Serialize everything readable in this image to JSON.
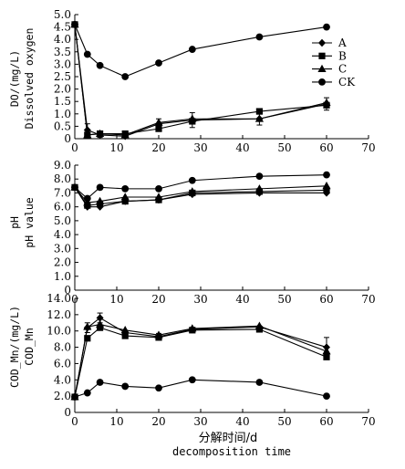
{
  "chart_data": [
    {
      "type": "line",
      "id": "do",
      "ylabel_line1": "DO/(mg/L)",
      "ylabel_line2": "Dissolved oxygen",
      "ylim": [
        0,
        5
      ],
      "yticks": [
        "0",
        "0.5",
        "1.0",
        "1.5",
        "2.0",
        "2.5",
        "3.0",
        "3.5",
        "4.0",
        "4.5",
        "5.0"
      ],
      "xlim": [
        0,
        70
      ],
      "xticks": [
        "0",
        "10",
        "20",
        "30",
        "40",
        "50",
        "60",
        "70"
      ],
      "x": [
        0,
        3,
        6,
        12,
        20,
        28,
        44,
        60
      ],
      "legend_position": "top-right",
      "series": [
        {
          "name": "A",
          "marker": "diamond",
          "values": [
            4.6,
            0.35,
            0.15,
            0.1,
            0.6,
            0.75,
            0.8,
            1.4
          ],
          "errors": [
            0,
            0.25,
            0.1,
            0.1,
            0.2,
            0.3,
            0.25,
            0.25
          ]
        },
        {
          "name": "B",
          "marker": "square",
          "values": [
            4.6,
            0.15,
            0.2,
            0.2,
            0.4,
            0.7,
            1.1,
            1.35
          ],
          "errors": [
            0,
            0,
            0,
            0,
            0,
            0,
            0,
            0
          ]
        },
        {
          "name": "C",
          "marker": "triangle",
          "values": [
            4.6,
            0.15,
            0.2,
            0.15,
            0.65,
            0.8,
            0.8,
            1.45
          ],
          "errors": [
            0,
            0,
            0,
            0,
            0,
            0,
            0,
            0
          ]
        },
        {
          "name": "CK",
          "marker": "circle",
          "values": [
            4.6,
            3.4,
            2.95,
            2.5,
            3.05,
            3.6,
            4.1,
            4.5
          ],
          "errors": [
            0,
            0,
            0,
            0,
            0,
            0,
            0,
            0
          ]
        }
      ]
    },
    {
      "type": "line",
      "id": "ph",
      "ylabel_line1": "pH",
      "ylabel_line2": "pH value",
      "ylim": [
        0,
        9
      ],
      "yticks": [
        "0",
        "1.0",
        "2.0",
        "3.0",
        "4.0",
        "5.0",
        "6.0",
        "7.0",
        "8.0",
        "9.0"
      ],
      "xlim": [
        0,
        70
      ],
      "xticks": [
        "0",
        "10",
        "20",
        "30",
        "40",
        "50",
        "60",
        "70"
      ],
      "x": [
        0,
        3,
        6,
        12,
        20,
        28,
        44,
        60
      ],
      "series": [
        {
          "name": "A",
          "marker": "diamond",
          "values": [
            7.4,
            6.0,
            6.0,
            6.4,
            6.5,
            6.9,
            7.0,
            7.0
          ],
          "errors": [
            0,
            0,
            0,
            0,
            0,
            0,
            0,
            0
          ]
        },
        {
          "name": "B",
          "marker": "square",
          "values": [
            7.4,
            6.1,
            6.2,
            6.4,
            6.5,
            7.0,
            7.1,
            7.2
          ],
          "errors": [
            0,
            0,
            0,
            0,
            0,
            0,
            0,
            0
          ]
        },
        {
          "name": "C",
          "marker": "triangle",
          "values": [
            7.4,
            6.3,
            6.4,
            6.7,
            6.7,
            7.1,
            7.3,
            7.5
          ],
          "errors": [
            0,
            0,
            0,
            0,
            0,
            0,
            0,
            0
          ]
        },
        {
          "name": "CK",
          "marker": "circle",
          "values": [
            7.4,
            6.6,
            7.4,
            7.3,
            7.3,
            7.9,
            8.2,
            8.3
          ],
          "errors": [
            0,
            0,
            0,
            0,
            0,
            0,
            0,
            0
          ]
        }
      ]
    },
    {
      "type": "line",
      "id": "cod",
      "ylabel_line1": "COD_Mn/(mg/L)",
      "ylabel_line2": "COD_Mn",
      "ylim": [
        0,
        14
      ],
      "yticks": [
        "0",
        "2.0",
        "4.0",
        "6.0",
        "8.0",
        "10.0",
        "12.0",
        "14.0"
      ],
      "xlim": [
        0,
        70
      ],
      "xticks": [
        "0",
        "10",
        "20",
        "30",
        "40",
        "50",
        "60",
        "70"
      ],
      "x": [
        0,
        3,
        6,
        12,
        20,
        28,
        44,
        60
      ],
      "xlabel_cn": "分解时间/d",
      "xlabel_en": "decomposition time",
      "series": [
        {
          "name": "A",
          "marker": "diamond",
          "values": [
            1.9,
            10.4,
            11.6,
            9.8,
            9.3,
            10.2,
            10.5,
            8.0
          ],
          "errors": [
            0,
            0.6,
            0.6,
            0,
            0.4,
            0,
            0,
            1.2
          ]
        },
        {
          "name": "B",
          "marker": "square",
          "values": [
            1.9,
            9.1,
            10.4,
            9.4,
            9.2,
            10.1,
            10.2,
            6.8
          ],
          "errors": [
            0,
            0,
            0,
            0,
            0,
            0,
            0,
            0
          ]
        },
        {
          "name": "C",
          "marker": "triangle",
          "values": [
            1.9,
            10.5,
            10.8,
            10.1,
            9.5,
            10.3,
            10.6,
            7.5
          ],
          "errors": [
            0,
            0,
            0,
            0,
            0,
            0,
            0,
            0
          ]
        },
        {
          "name": "CK",
          "marker": "circle",
          "values": [
            1.9,
            2.4,
            3.7,
            3.2,
            3.0,
            4.0,
            3.7,
            2.0
          ],
          "errors": [
            0,
            0,
            0,
            0,
            0,
            0,
            0,
            0
          ]
        }
      ]
    }
  ]
}
